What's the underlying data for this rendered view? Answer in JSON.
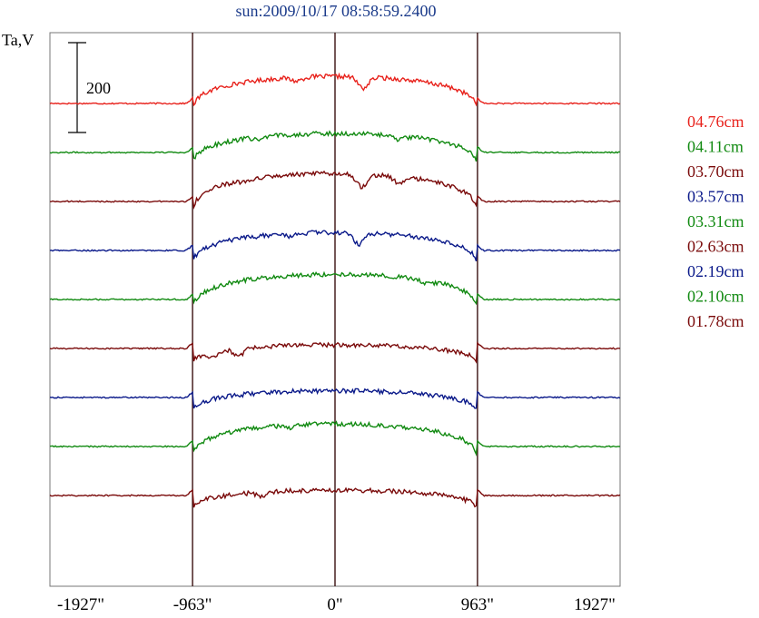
{
  "chart_data": {
    "type": "line",
    "title": "sun:2009/10/17 08:58:59.2400",
    "ylabel": "Ta,V",
    "xlim": [
      -1927,
      1927
    ],
    "x_ticks": [
      {
        "value": -1927,
        "label": "-1927\""
      },
      {
        "value": -963,
        "label": "-963\""
      },
      {
        "value": 0,
        "label": "0\""
      },
      {
        "value": 963,
        "label": "963\""
      },
      {
        "value": 1927,
        "label": "1927\""
      }
    ],
    "vertical_markers": [
      -963,
      0,
      963
    ],
    "scale_bar": {
      "label": "200",
      "value": 200
    },
    "grid": false,
    "legend_position": "right",
    "series": [
      {
        "name": "04.76cm",
        "color": "#e8221c",
        "offset": 0,
        "baseline": 0,
        "amplitude": 60,
        "rim_drop": 30,
        "dips": [
          [
            190,
            25
          ],
          [
            -260,
            8
          ]
        ]
      },
      {
        "name": "04.11cm",
        "color": "#118a11",
        "offset": 54,
        "baseline": 0,
        "amplitude": 42,
        "rim_drop": 40,
        "dips": [
          [
            430,
            8
          ],
          [
            -500,
            6
          ]
        ]
      },
      {
        "name": "03.70cm",
        "color": "#7a0a0a",
        "offset": 108,
        "baseline": 0,
        "amplitude": 62,
        "rim_drop": 40,
        "dips": [
          [
            180,
            28
          ],
          [
            430,
            15
          ],
          [
            -600,
            6
          ]
        ]
      },
      {
        "name": "03.57cm",
        "color": "#0b1a8a",
        "offset": 162,
        "baseline": 0,
        "amplitude": 40,
        "rim_drop": 45,
        "dips": [
          [
            160,
            25
          ],
          [
            -300,
            6
          ]
        ]
      },
      {
        "name": "03.31cm",
        "color": "#118a11",
        "offset": 216,
        "baseline": 0,
        "amplitude": 56,
        "rim_drop": 38,
        "dips": [
          [
            620,
            6
          ]
        ]
      },
      {
        "name": "02.63cm",
        "color": "#7a0a0a",
        "offset": 270,
        "baseline": 0,
        "amplitude": 8,
        "rim_drop": 40,
        "dips": [
          [
            -650,
            18
          ],
          [
            -830,
            10
          ]
        ]
      },
      {
        "name": "02.19cm",
        "color": "#0b1a8a",
        "offset": 324,
        "baseline": 0,
        "amplitude": 15,
        "rim_drop": 42,
        "dips": []
      },
      {
        "name": "02.10cm",
        "color": "#118a11",
        "offset": 378,
        "baseline": 0,
        "amplitude": 50,
        "rim_drop": 40,
        "dips": [
          [
            -300,
            6
          ]
        ]
      },
      {
        "name": "01.78cm",
        "color": "#7a0a0a",
        "offset": 432,
        "baseline": 0,
        "amplitude": 12,
        "rim_drop": 40,
        "dips": [
          [
            -500,
            8
          ]
        ]
      }
    ]
  }
}
